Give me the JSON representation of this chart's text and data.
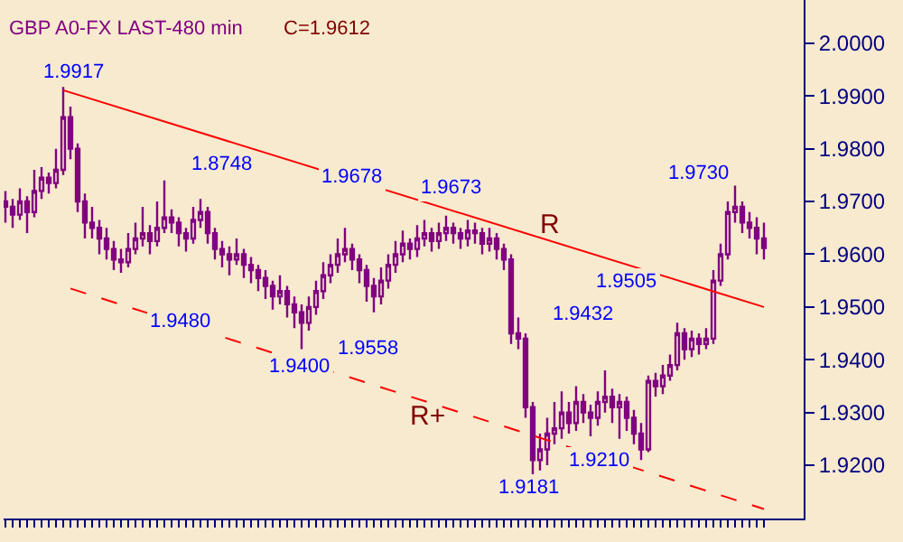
{
  "chart_data": {
    "type": "candlestick",
    "title": "GBP A0-FX LAST-480 min",
    "subtitle": "C=1.9612",
    "color": "#800080",
    "categories": [
      null,
      null,
      null,
      null,
      null,
      null,
      null,
      null,
      null,
      null,
      null,
      null,
      null,
      null,
      null,
      null,
      null,
      null,
      null,
      null,
      null,
      null,
      null,
      null,
      null,
      null,
      null,
      null,
      null,
      null,
      null,
      null,
      null,
      null,
      null,
      null,
      null,
      null,
      null,
      null,
      null,
      null,
      null,
      null,
      null,
      null,
      null,
      null,
      null,
      null,
      null,
      null,
      null,
      null,
      null,
      null,
      null,
      null,
      null,
      null,
      null,
      null,
      null,
      null,
      null,
      null,
      null,
      null,
      null,
      null,
      null,
      null,
      null,
      null,
      null,
      null,
      null,
      null,
      null,
      null,
      null,
      null,
      null,
      null,
      null,
      null,
      null,
      null,
      null,
      null,
      null,
      null,
      null,
      null,
      null,
      null,
      null,
      null,
      null,
      null,
      null,
      null,
      null,
      null,
      null,
      null
    ],
    "ohlc": [
      [
        1.97,
        1.972,
        1.966,
        1.969
      ],
      [
        1.969,
        1.9705,
        1.965,
        1.9675
      ],
      [
        1.9675,
        1.9725,
        1.9665,
        1.97
      ],
      [
        1.97,
        1.971,
        1.964,
        1.968
      ],
      [
        1.968,
        1.976,
        1.967,
        1.972
      ],
      [
        1.972,
        1.9765,
        1.9705,
        1.9745
      ],
      [
        1.9745,
        1.9755,
        1.9715,
        1.9735
      ],
      [
        1.9735,
        1.98,
        1.9725,
        1.976
      ],
      [
        1.976,
        1.9917,
        1.975,
        1.986
      ],
      [
        1.986,
        1.988,
        1.978,
        1.98
      ],
      [
        1.98,
        1.981,
        1.968,
        1.97
      ],
      [
        1.97,
        1.9715,
        1.963,
        1.966
      ],
      [
        1.966,
        1.969,
        1.963,
        1.965
      ],
      [
        1.965,
        1.9665,
        1.96,
        1.963
      ],
      [
        1.963,
        1.965,
        1.959,
        1.961
      ],
      [
        1.961,
        1.9625,
        1.957,
        1.959
      ],
      [
        1.959,
        1.961,
        1.9565,
        1.9585
      ],
      [
        1.9585,
        1.964,
        1.9575,
        1.961
      ],
      [
        1.961,
        1.966,
        1.96,
        1.963
      ],
      [
        1.963,
        1.969,
        1.9615,
        1.964
      ],
      [
        1.964,
        1.9655,
        1.96,
        1.9625
      ],
      [
        1.9625,
        1.97,
        1.9615,
        1.965
      ],
      [
        1.965,
        1.974,
        1.964,
        1.967
      ],
      [
        1.967,
        1.9685,
        1.964,
        1.966
      ],
      [
        1.966,
        1.967,
        1.9615,
        1.964
      ],
      [
        1.964,
        1.965,
        1.9605,
        1.963
      ],
      [
        1.963,
        1.969,
        1.962,
        1.9665
      ],
      [
        1.9665,
        1.9705,
        1.965,
        1.968
      ],
      [
        1.968,
        1.969,
        1.962,
        1.964
      ],
      [
        1.964,
        1.965,
        1.959,
        1.961
      ],
      [
        1.961,
        1.9625,
        1.9575,
        1.96
      ],
      [
        1.96,
        1.9615,
        1.956,
        1.959
      ],
      [
        1.959,
        1.963,
        1.958,
        1.96
      ],
      [
        1.96,
        1.961,
        1.9555,
        1.958
      ],
      [
        1.958,
        1.9595,
        1.9545,
        1.957
      ],
      [
        1.957,
        1.958,
        1.953,
        1.9555
      ],
      [
        1.9555,
        1.957,
        1.9515,
        1.954
      ],
      [
        1.954,
        1.955,
        1.9495,
        1.952
      ],
      [
        1.952,
        1.956,
        1.9505,
        1.953
      ],
      [
        1.953,
        1.954,
        1.948,
        1.9505
      ],
      [
        1.9505,
        1.952,
        1.946,
        1.949
      ],
      [
        1.949,
        1.9505,
        1.942,
        1.947
      ],
      [
        1.947,
        1.952,
        1.9455,
        1.95
      ],
      [
        1.95,
        1.955,
        1.9485,
        1.953
      ],
      [
        1.953,
        1.9585,
        1.9515,
        1.956
      ],
      [
        1.956,
        1.96,
        1.9545,
        1.958
      ],
      [
        1.958,
        1.963,
        1.9565,
        1.96
      ],
      [
        1.96,
        1.965,
        1.9585,
        1.961
      ],
      [
        1.961,
        1.962,
        1.957,
        1.959
      ],
      [
        1.959,
        1.96,
        1.9545,
        1.957
      ],
      [
        1.957,
        1.958,
        1.951,
        1.954
      ],
      [
        1.954,
        1.9555,
        1.949,
        1.952
      ],
      [
        1.952,
        1.9575,
        1.9505,
        1.955
      ],
      [
        1.955,
        1.96,
        1.9535,
        1.958
      ],
      [
        1.958,
        1.9625,
        1.9565,
        1.96
      ],
      [
        1.96,
        1.9645,
        1.9585,
        1.962
      ],
      [
        1.962,
        1.963,
        1.959,
        1.961
      ],
      [
        1.961,
        1.9655,
        1.9595,
        1.963
      ],
      [
        1.963,
        1.9665,
        1.9615,
        1.964
      ],
      [
        1.964,
        1.965,
        1.9605,
        1.9625
      ],
      [
        1.9625,
        1.966,
        1.961,
        1.964
      ],
      [
        1.964,
        1.9673,
        1.9625,
        1.965
      ],
      [
        1.965,
        1.966,
        1.962,
        1.964
      ],
      [
        1.964,
        1.965,
        1.961,
        1.963
      ],
      [
        1.963,
        1.9665,
        1.9615,
        1.9645
      ],
      [
        1.9645,
        1.966,
        1.962,
        1.964
      ],
      [
        1.964,
        1.965,
        1.96,
        1.962
      ],
      [
        1.962,
        1.965,
        1.9605,
        1.963
      ],
      [
        1.963,
        1.964,
        1.959,
        1.961
      ],
      [
        1.961,
        1.962,
        1.957,
        1.959
      ],
      [
        1.959,
        1.96,
        1.943,
        1.945
      ],
      [
        1.945,
        1.948,
        1.942,
        1.944
      ],
      [
        1.944,
        1.945,
        1.929,
        1.931
      ],
      [
        1.931,
        1.932,
        1.9181,
        1.921
      ],
      [
        1.921,
        1.926,
        1.919,
        1.923
      ],
      [
        1.923,
        1.929,
        1.92,
        1.926
      ],
      [
        1.926,
        1.932,
        1.924,
        1.927
      ],
      [
        1.927,
        1.934,
        1.925,
        1.93
      ],
      [
        1.93,
        1.932,
        1.926,
        1.928
      ],
      [
        1.928,
        1.935,
        1.9265,
        1.932
      ],
      [
        1.932,
        1.9335,
        1.928,
        1.93
      ],
      [
        1.93,
        1.9315,
        1.9255,
        1.929
      ],
      [
        1.929,
        1.934,
        1.9275,
        1.932
      ],
      [
        1.932,
        1.938,
        1.93,
        1.933
      ],
      [
        1.933,
        1.9345,
        1.928,
        1.931
      ],
      [
        1.931,
        1.9335,
        1.925,
        1.932
      ],
      [
        1.932,
        1.933,
        1.9265,
        1.929
      ],
      [
        1.929,
        1.9305,
        1.924,
        1.926
      ],
      [
        1.926,
        1.928,
        1.921,
        1.923
      ],
      [
        1.923,
        1.937,
        1.9225,
        1.936
      ],
      [
        1.936,
        1.9375,
        1.933,
        1.935
      ],
      [
        1.935,
        1.939,
        1.9335,
        1.937
      ],
      [
        1.937,
        1.941,
        1.936,
        1.939
      ],
      [
        1.939,
        1.947,
        1.938,
        1.945
      ],
      [
        1.945,
        1.946,
        1.94,
        1.942
      ],
      [
        1.942,
        1.9455,
        1.9405,
        1.944
      ],
      [
        1.944,
        1.945,
        1.941,
        1.943
      ],
      [
        1.943,
        1.946,
        1.942,
        1.944
      ],
      [
        1.944,
        1.957,
        1.943,
        1.955
      ],
      [
        1.955,
        1.962,
        1.954,
        1.96
      ],
      [
        1.96,
        1.97,
        1.959,
        1.968
      ],
      [
        1.968,
        1.973,
        1.966,
        1.969
      ],
      [
        1.969,
        1.97,
        1.964,
        1.966
      ],
      [
        1.966,
        1.968,
        1.963,
        1.965
      ],
      [
        1.965,
        1.967,
        1.96,
        1.963
      ],
      [
        1.963,
        1.966,
        1.959,
        1.9612
      ]
    ],
    "series": [
      {
        "name": "R",
        "type": "line",
        "color": "#ff0000",
        "line_style": "solid",
        "values": [
          null,
          null,
          null,
          null,
          null,
          null,
          null,
          null,
          1.9911,
          null,
          null,
          null,
          null,
          null,
          null,
          null,
          null,
          null,
          null,
          null,
          null,
          null,
          null,
          null,
          null,
          null,
          null,
          null,
          null,
          null,
          null,
          null,
          null,
          null,
          null,
          null,
          null,
          null,
          null,
          null,
          null,
          null,
          null,
          null,
          null,
          null,
          null,
          null,
          null,
          null,
          null,
          null,
          null,
          null,
          null,
          null,
          null,
          null,
          null,
          null,
          null,
          null,
          null,
          null,
          null,
          null,
          null,
          null,
          null,
          null,
          null,
          null,
          null,
          null,
          null,
          null,
          null,
          null,
          null,
          null,
          null,
          null,
          null,
          null,
          null,
          null,
          null,
          null,
          null,
          null,
          null,
          null,
          null,
          null,
          null,
          null,
          null,
          null,
          null,
          null,
          null,
          null,
          null,
          null,
          null,
          1.95
        ]
      },
      {
        "name": "R+",
        "type": "line",
        "color": "#ff0000",
        "line_style": "dashed",
        "values": [
          null,
          null,
          null,
          null,
          null,
          null,
          null,
          null,
          null,
          1.9535,
          null,
          null,
          null,
          null,
          null,
          null,
          null,
          null,
          null,
          null,
          null,
          null,
          null,
          null,
          null,
          null,
          null,
          null,
          null,
          null,
          null,
          null,
          null,
          null,
          null,
          null,
          null,
          null,
          null,
          null,
          null,
          null,
          null,
          null,
          null,
          null,
          null,
          null,
          null,
          null,
          null,
          null,
          null,
          null,
          null,
          null,
          null,
          null,
          null,
          null,
          null,
          null,
          null,
          null,
          null,
          null,
          null,
          null,
          null,
          null,
          null,
          null,
          null,
          null,
          null,
          null,
          null,
          null,
          null,
          null,
          null,
          null,
          null,
          null,
          null,
          null,
          null,
          null,
          null,
          null,
          null,
          null,
          null,
          null,
          null,
          null,
          null,
          null,
          null,
          null,
          null,
          null,
          null,
          null,
          null,
          1.9117
        ]
      }
    ],
    "annotations": [
      "1.9917",
      "1.8748",
      "1.9678",
      "1.9673",
      "1.9730",
      "1.9480",
      "1.9400",
      "1.9558",
      "1.9505",
      "1.9432",
      "1.9181",
      "1.9210"
    ],
    "ylim": [
      1.9099,
      2.0082
    ],
    "yticks": [
      {
        "value": 1.92,
        "label": "1.9200"
      },
      {
        "value": 1.93,
        "label": "1.9300"
      },
      {
        "value": 1.94,
        "label": "1.9400"
      },
      {
        "value": 1.95,
        "label": "1.9500"
      },
      {
        "value": 1.96,
        "label": "1.9600"
      },
      {
        "value": 1.97,
        "label": "1.9700"
      },
      {
        "value": 1.98,
        "label": "1.9800"
      },
      {
        "value": 1.99,
        "label": "1.9900"
      },
      {
        "value": 2.0,
        "label": "2.0000"
      }
    ],
    "tick_labels": "y",
    "grid": false,
    "legend": false
  }
}
